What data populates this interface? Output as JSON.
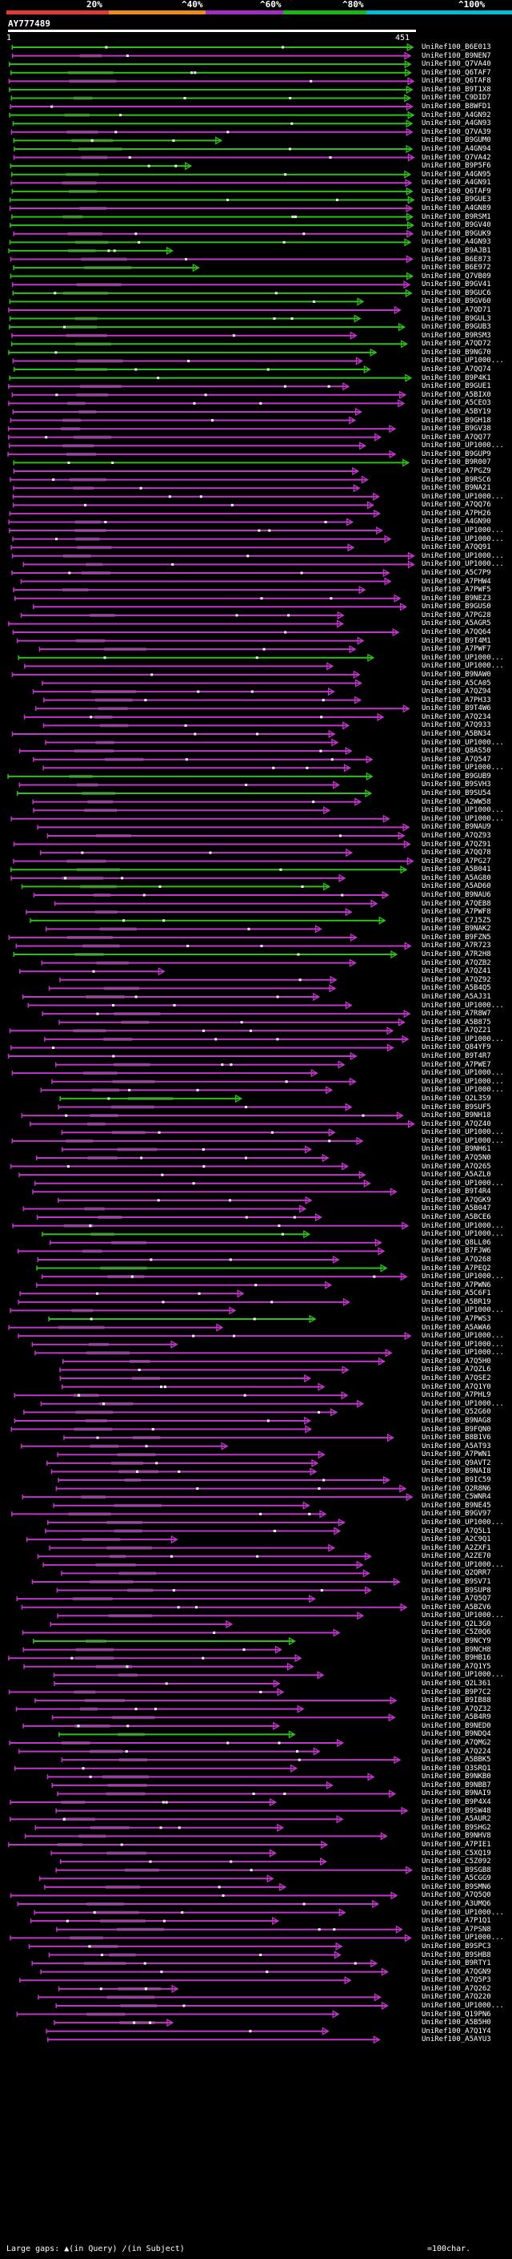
{
  "scale": {
    "labels": [
      "20%",
      "^40%",
      "^60%",
      "^80%",
      "^100%"
    ],
    "colors": [
      "#e53935",
      "#ef8a1d",
      "#a32cc4",
      "#1db614",
      "#00bcd4"
    ]
  },
  "query": {
    "title": "AY777489",
    "start": "1",
    "end": "451"
  },
  "colors": {
    "green": "#2fbf1a",
    "magenta": "#c036c8",
    "gap": "#4a4a4a",
    "mark": "#ffffff"
  },
  "hits": [
    "UniRef100_B6E013",
    "UniRef100_B9NEN7",
    "UniRef100_Q7VA40",
    "UniRef100_Q6TAF7",
    "UniRef100_Q6TAF8",
    "UniRef100_B9T1X8",
    "UniRef100_C9DID7",
    "UniRef100_B8WFD1",
    "UniRef100_A4GN92",
    "UniRef100_A4GN93",
    "UniRef100_Q7VA39",
    "UniRef100_B9GUM0",
    "UniRef100_A4GN94",
    "UniRef100_Q7VA42",
    "UniRef100_B9P5F6",
    "UniRef100_A4GN95",
    "UniRef100_A4GN91",
    "UniRef100_Q6TAF9",
    "UniRef100_B9GUE3",
    "UniRef100_A4GN89",
    "UniRef100_B9RSM1",
    "UniRef100_B9GV40",
    "UniRef100_B9GUK9",
    "UniRef100_A4GN93",
    "UniRef100_B9AJB1",
    "UniRef100_B6E873",
    "UniRef100_B6E972",
    "UniRef100_Q7VB09",
    "UniRef100_B9GV41",
    "UniRef100_B9GUC6",
    "UniRef100_B9GV60",
    "UniRef100_A7QD71",
    "UniRef100_B9GUL3",
    "UniRef100_B9GUB3",
    "UniRef100_B9RSM3",
    "UniRef100_A7QD72",
    "UniRef100_B9NG70",
    "UniRef100_UP1000...",
    "UniRef100_A7QQ74",
    "UniRef100_B9P4K1",
    "UniRef100_B9GUE1",
    "UniRef100_A5BIX0",
    "UniRef100_A5CEO3",
    "UniRef100_A5BY19",
    "UniRef100_B9GH18",
    "UniRef100_B9GV38",
    "UniRef100_A7QQ77",
    "UniRef100_UP1000...",
    "UniRef100_B9GUP9",
    "UniRef100_B9R007",
    "UniRef100_A7PGZ9",
    "UniRef100_B9RSC6",
    "UniRef100_B9NA21",
    "UniRef100_UP1000...",
    "UniRef100_A7QQ76",
    "UniRef100_A7PH26",
    "UniRef100_A4GN90",
    "UniRef100_UP1000...",
    "UniRef100_UP1000...",
    "UniRef100_A7QQ91",
    "UniRef100_UP1000...",
    "UniRef100_UP1000...",
    "UniRef100_A5C7P9",
    "UniRef100_A7PHW4",
    "UniRef100_A7PWF5",
    "UniRef100_B9NEZ3",
    "UniRef100_B9GUS0",
    "UniRef100_A7PG28",
    "UniRef100_A5AGR5",
    "UniRef100_A7QQ64",
    "UniRef100_B9T4M1",
    "UniRef100_A7PWF7",
    "UniRef100_UP1000...",
    "UniRef100_UP1000...",
    "UniRef100_B9NAW0",
    "UniRef100_A5CA05",
    "UniRef100_A7QZ94",
    "UniRef100_A7PH33",
    "UniRef100_B9T4W6",
    "UniRef100_A7Q234",
    "UniRef100_A7Q933",
    "UniRef100_A5BN34",
    "UniRef100_UP1000...",
    "UniRef100_Q8AS50",
    "UniRef100_A7Q547",
    "UniRef100_UP1000...",
    "UniRef100_B9GUB9",
    "UniRef100_B9SVH3",
    "UniRef100_B9SU54",
    "UniRef100_A2WW58",
    "UniRef100_UP1000...",
    "UniRef100_UP1000...",
    "UniRef100_B9NAU9",
    "UniRef100_A7QZ93",
    "UniRef100_A7QZ91",
    "UniRef100_A7QQ78",
    "UniRef100_A7PG27",
    "UniRef100_A5B041",
    "UniRef100_A5AG80",
    "UniRef100_A5AD60",
    "UniRef100_B9NAU6",
    "UniRef100_A7QEB8",
    "UniRef100_A7PWF8",
    "UniRef100_C7J5Z5",
    "UniRef100_B9NAK2",
    "UniRef100_B9FZN5",
    "UniRef100_A7R723",
    "UniRef100_A7R2H8",
    "UniRef100_A7QZB2",
    "UniRef100_A7QZ41",
    "UniRef100_A7QZ92",
    "UniRef100_A5B4Q5",
    "UniRef100_A5AJ31",
    "UniRef100_UP1000...",
    "UniRef100_A7R8W7",
    "UniRef100_A5B875",
    "UniRef100_A7QZ21",
    "UniRef100_UP1000...",
    "UniRef100_Q84YF9",
    "UniRef100_B9T4R7",
    "UniRef100_A7PWE7",
    "UniRef100_UP1000...",
    "UniRef100_UP1000...",
    "UniRef100_UP1000...",
    "UniRef100_Q2L3S9",
    "UniRef100_B9SUF5",
    "UniRef100_B9NH18",
    "UniRef100_A7QZ40",
    "UniRef100_UP1000...",
    "UniRef100_UP1000...",
    "UniRef100_B9NH61",
    "UniRef100_A7Q5N0",
    "UniRef100_A7Q265",
    "UniRef100_A5AZL0",
    "UniRef100_UP1000...",
    "UniRef100_B9T4R4",
    "UniRef100_A7QGK9",
    "UniRef100_A5B047",
    "UniRef100_A5BCE6",
    "UniRef100_UP1000...",
    "UniRef100_UP1000...",
    "UniRef100_Q8LL06",
    "UniRef100_B7FJW6",
    "UniRef100_A7Q268",
    "UniRef100_A7PEQ2",
    "UniRef100_UP1000...",
    "UniRef100_A7PWN6",
    "UniRef100_A5C6F1",
    "UniRef100_A5BR19",
    "UniRef100_UP1000...",
    "UniRef100_A7PWS3",
    "UniRef100_A5AWA6",
    "UniRef100_UP1000...",
    "UniRef100_UP1000...",
    "UniRef100_UP1000...",
    "UniRef100_A7Q5H0",
    "UniRef100_A7QZL6",
    "UniRef100_A7QSE2",
    "UniRef100_A7Q1Y0",
    "UniRef100_A7PHL9",
    "UniRef100_UP1000...",
    "UniRef100_Q52G60",
    "UniRef100_B9NAG8",
    "UniRef100_B9FQN0",
    "UniRef100_B8B1V6",
    "UniRef100_A5AT93",
    "UniRef100_A7PWN1",
    "UniRef100_Q9AVT2",
    "UniRef100_B9NAI8",
    "UniRef100_B9IC59",
    "UniRef100_Q2R8N6",
    "UniRef100_C5WNR4",
    "UniRef100_B9NE45",
    "UniRef100_B9GV97",
    "UniRef100_UP1000...",
    "UniRef100_A7Q5L1",
    "UniRef100_A2C9Q1",
    "UniRef100_A2ZXF1",
    "UniRef100_A2ZE70",
    "UniRef100_UP1000...",
    "UniRef100_Q2QRR7",
    "UniRef100_B9SV71",
    "UniRef100_B9SUP8",
    "UniRef100_A7Q5Q7",
    "UniRef100_A5BZV6",
    "UniRef100_UP1000...",
    "UniRef100_Q2L3G0",
    "UniRef100_C5Z0Q6",
    "UniRef100_B9NCY9",
    "UniRef100_B9NCH8",
    "UniRef100_B9HB16",
    "UniRef100_A7Q1Y5",
    "UniRef100_UP1000...",
    "UniRef100_Q2L361",
    "UniRef100_B9P7C2",
    "UniRef100_B9IB88",
    "UniRef100_A7QZ32",
    "UniRef100_A5B4R9",
    "UniRef100_B9NED0",
    "UniRef100_B9NDQ4",
    "UniRef100_A7QMG2",
    "UniRef100_A7Q224",
    "UniRef100_A5BBK5",
    "UniRef100_Q3SRQ1",
    "UniRef100_B9NKB0",
    "UniRef100_B9NBB7",
    "UniRef100_B9NAI9",
    "UniRef100_B9P4X4",
    "UniRef100_B9SW48",
    "UniRef100_A5AUR2",
    "UniRef100_B9SHG2",
    "UniRef100_B9NHV8",
    "UniRef100_A7PIE1",
    "UniRef100_C5XQ19",
    "UniRef100_C5Z092",
    "UniRef100_B9SGB8",
    "UniRef100_A5CGG9",
    "UniRef100_B9SMN6",
    "UniRef100_A7Q5Q0",
    "UniRef100_A3UMQ6",
    "UniRef100_UP1000...",
    "UniRef100_A7P1Q1",
    "UniRef100_A7PSN8",
    "UniRef100_UP1000...",
    "UniRef100_B9SPC3",
    "UniRef100_B9SHB8",
    "UniRef100_B9RTY1",
    "UniRef100_A7QGN9",
    "UniRef100_A7Q5P3",
    "UniRef100_A7Q262",
    "UniRef100_A7Q220",
    "UniRef100_UP1000...",
    "UniRef100_Q19PN6",
    "UniRef100_A5B5H0",
    "UniRef100_A7Q1Y4",
    "UniRef100_A5AYU3"
  ],
  "legend": {
    "large_gaps_label": "Large gaps:",
    "in_query_label": "(in Query)",
    "in_subject_label": "(in Subject)",
    "char_label": "=100char."
  }
}
